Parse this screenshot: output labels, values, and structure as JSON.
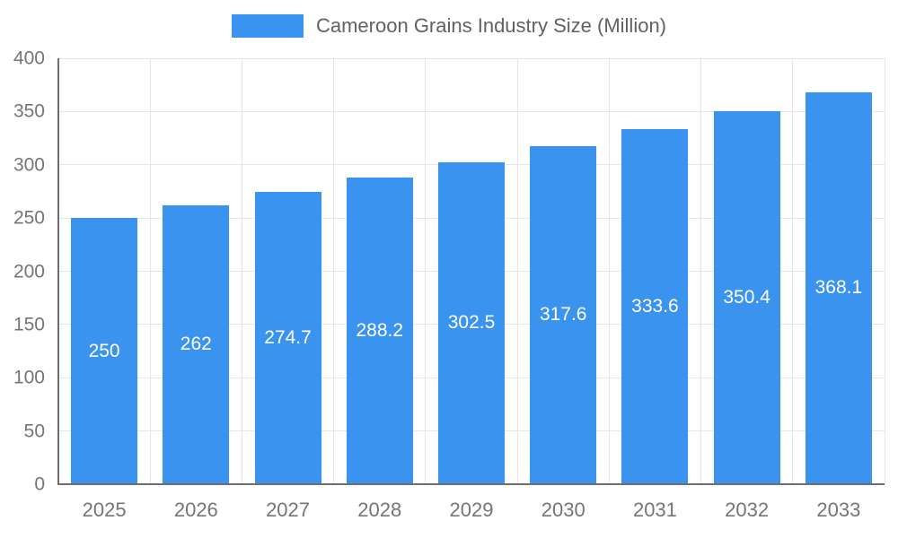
{
  "legend": {
    "label": "Cameroon Grains Industry Size (Million)"
  },
  "colors": {
    "bar": "#3B93F0",
    "legend_text": "#616161",
    "axis_text": "#757575",
    "grid": "#E6E6E6",
    "axis_line": "#6E6E6E",
    "bar_label_text": "#FFFFFF",
    "background": "#FFFFFF"
  },
  "chart_data": {
    "type": "bar",
    "title": "Cameroon Grains Industry Size (Million)",
    "categories": [
      "2025",
      "2026",
      "2027",
      "2028",
      "2029",
      "2030",
      "2031",
      "2032",
      "2033"
    ],
    "values": [
      250,
      262,
      274.7,
      288.2,
      302.5,
      317.6,
      333.6,
      350.4,
      368.1
    ],
    "value_labels": [
      "250",
      "262",
      "274.7",
      "288.2",
      "302.5",
      "317.6",
      "333.6",
      "350.4",
      "368.1"
    ],
    "xlabel": "",
    "ylabel": "",
    "ylim": [
      0,
      400
    ],
    "ytick_interval": 50,
    "ytick_labels": [
      "0",
      "50",
      "100",
      "150",
      "200",
      "250",
      "300",
      "350",
      "400"
    ],
    "grid": true,
    "legend_position": "top"
  }
}
